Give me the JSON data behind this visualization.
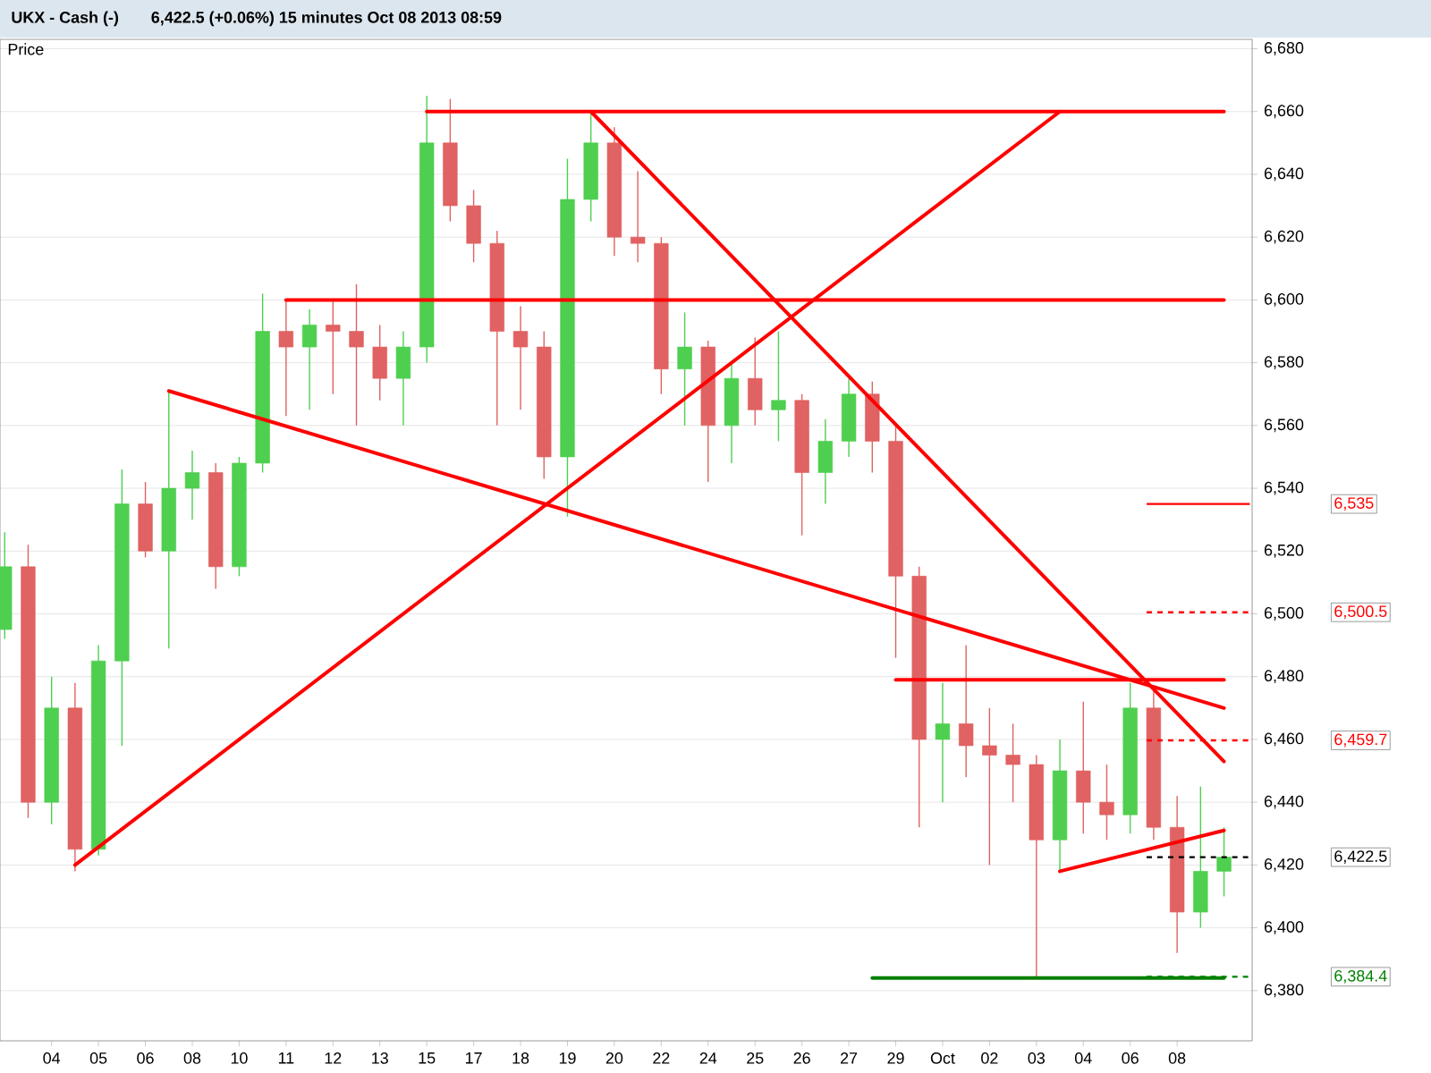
{
  "chart_data": {
    "type": "candlestick",
    "title": "UKX - Cash (-)",
    "subtitle": "6,422.5 (+0.06%)   15 minutes   Oct 08 2013 08:59",
    "ylabel": "Price",
    "categories": [
      null,
      null,
      "04",
      null,
      "05",
      null,
      "06",
      null,
      "08",
      null,
      "10",
      null,
      "11",
      null,
      "12",
      null,
      "13",
      null,
      "15",
      null,
      "17",
      null,
      "18",
      null,
      "19",
      null,
      "20",
      null,
      "22",
      null,
      "24",
      null,
      "25",
      null,
      "26",
      null,
      "27",
      null,
      "29",
      null,
      "Oct",
      null,
      "02",
      null,
      "03",
      null,
      "04",
      null,
      "06",
      null,
      "08",
      null,
      null
    ],
    "ohlc": [
      [
        6495,
        6526,
        6492,
        6515
      ],
      [
        6515,
        6522,
        6435,
        6440
      ],
      [
        6440,
        6480,
        6433,
        6470
      ],
      [
        6470,
        6478,
        6418,
        6425
      ],
      [
        6425,
        6490,
        6423,
        6485
      ],
      [
        6485,
        6546,
        6458,
        6535
      ],
      [
        6535,
        6542,
        6518,
        6520
      ],
      [
        6520,
        6571,
        6489,
        6540
      ],
      [
        6540,
        6552,
        6530,
        6545
      ],
      [
        6545,
        6548,
        6508,
        6515
      ],
      [
        6515,
        6550,
        6512,
        6548
      ],
      [
        6548,
        6602,
        6545,
        6590
      ],
      [
        6590,
        6600,
        6563,
        6585
      ],
      [
        6585,
        6597,
        6565,
        6592
      ],
      [
        6592,
        6600,
        6570,
        6590
      ],
      [
        6590,
        6605,
        6560,
        6585
      ],
      [
        6585,
        6592,
        6568,
        6575
      ],
      [
        6575,
        6590,
        6560,
        6585
      ],
      [
        6585,
        6665,
        6580,
        6650
      ],
      [
        6650,
        6664,
        6625,
        6630
      ],
      [
        6630,
        6635,
        6612,
        6618
      ],
      [
        6618,
        6622,
        6560,
        6590
      ],
      [
        6590,
        6598,
        6565,
        6585
      ],
      [
        6585,
        6590,
        6543,
        6550
      ],
      [
        6550,
        6645,
        6531,
        6632
      ],
      [
        6632,
        6660,
        6625,
        6650
      ],
      [
        6650,
        6655,
        6614,
        6620
      ],
      [
        6620,
        6641,
        6612,
        6618
      ],
      [
        6618,
        6620,
        6570,
        6578
      ],
      [
        6578,
        6596,
        6560,
        6585
      ],
      [
        6585,
        6587,
        6542,
        6560
      ],
      [
        6560,
        6580,
        6548,
        6575
      ],
      [
        6575,
        6588,
        6560,
        6565
      ],
      [
        6565,
        6590,
        6555,
        6568
      ],
      [
        6568,
        6570,
        6525,
        6545
      ],
      [
        6545,
        6562,
        6535,
        6555
      ],
      [
        6555,
        6575,
        6550,
        6570
      ],
      [
        6570,
        6574,
        6545,
        6555
      ],
      [
        6555,
        6560,
        6486,
        6512
      ],
      [
        6512,
        6515,
        6432,
        6460
      ],
      [
        6460,
        6478,
        6440,
        6465
      ],
      [
        6465,
        6490,
        6448,
        6458
      ],
      [
        6458,
        6470,
        6420,
        6455
      ],
      [
        6455,
        6465,
        6440,
        6452
      ],
      [
        6452,
        6455,
        6384,
        6428
      ],
      [
        6428,
        6460,
        6418,
        6450
      ],
      [
        6450,
        6472,
        6430,
        6440
      ],
      [
        6440,
        6452,
        6428,
        6436
      ],
      [
        6436,
        6478,
        6430,
        6470
      ],
      [
        6470,
        6477,
        6428,
        6432
      ],
      [
        6432,
        6442,
        6392,
        6405
      ],
      [
        6405,
        6445,
        6400,
        6418
      ],
      [
        6418,
        6432,
        6410,
        6422.5
      ]
    ],
    "colors": [
      "#4fcf4f",
      "#e06262",
      "#4fcf4f",
      "#e06262",
      "#4fcf4f",
      "#4fcf4f",
      "#e06262",
      "#4fcf4f",
      "#4fcf4f",
      "#e06262",
      "#4fcf4f",
      "#4fcf4f",
      "#e06262",
      "#4fcf4f",
      "#e06262",
      "#e06262",
      "#e06262",
      "#4fcf4f",
      "#4fcf4f",
      "#e06262",
      "#e06262",
      "#e06262",
      "#e06262",
      "#e06262",
      "#4fcf4f",
      "#4fcf4f",
      "#e06262",
      "#e06262",
      "#e06262",
      "#4fcf4f",
      "#e06262",
      "#4fcf4f",
      "#e06262",
      "#4fcf4f",
      "#e06262",
      "#4fcf4f",
      "#4fcf4f",
      "#e06262",
      "#e06262",
      "#e06262",
      "#4fcf4f",
      "#e06262",
      "#e06262",
      "#e06262",
      "#e06262",
      "#4fcf4f",
      "#e06262",
      "#e06262",
      "#4fcf4f",
      "#e06262",
      "#e06262",
      "#4fcf4f",
      "#4fcf4f"
    ],
    "series": [
      {
        "type": "line",
        "color": "#ff0000",
        "values": [
          null,
          null,
          null,
          null,
          null,
          null,
          null,
          null,
          null,
          null,
          null,
          null,
          null,
          null,
          null,
          null,
          null,
          null,
          6660,
          null,
          null,
          null,
          null,
          null,
          null,
          null,
          null,
          null,
          null,
          null,
          null,
          null,
          null,
          null,
          null,
          null,
          null,
          null,
          null,
          null,
          null,
          null,
          null,
          null,
          null,
          null,
          null,
          null,
          null,
          null,
          null,
          null,
          6660
        ]
      },
      {
        "type": "line",
        "color": "#ff0000",
        "values": [
          null,
          null,
          null,
          6420,
          null,
          null,
          null,
          null,
          null,
          null,
          null,
          null,
          null,
          null,
          null,
          null,
          null,
          null,
          null,
          null,
          null,
          null,
          null,
          null,
          null,
          null,
          null,
          null,
          null,
          null,
          null,
          null,
          null,
          null,
          null,
          null,
          null,
          null,
          null,
          null,
          null,
          null,
          null,
          null,
          null,
          6660,
          null,
          null,
          null,
          null,
          null,
          null,
          null
        ]
      },
      {
        "type": "line",
        "color": "#ff0000",
        "values": [
          null,
          null,
          null,
          null,
          null,
          null,
          null,
          null,
          null,
          null,
          null,
          null,
          6600,
          null,
          null,
          null,
          null,
          null,
          null,
          null,
          null,
          null,
          null,
          null,
          null,
          null,
          null,
          null,
          null,
          null,
          null,
          null,
          null,
          null,
          null,
          null,
          null,
          null,
          null,
          null,
          null,
          null,
          null,
          null,
          null,
          null,
          null,
          null,
          null,
          null,
          null,
          null,
          6600
        ]
      },
      {
        "type": "line",
        "color": "#ff0000",
        "values": [
          null,
          null,
          null,
          null,
          null,
          null,
          null,
          6571,
          null,
          null,
          null,
          null,
          null,
          null,
          null,
          null,
          null,
          null,
          null,
          null,
          null,
          null,
          null,
          null,
          null,
          null,
          null,
          null,
          null,
          null,
          null,
          null,
          null,
          null,
          null,
          null,
          null,
          null,
          null,
          null,
          null,
          null,
          null,
          null,
          null,
          null,
          null,
          null,
          null,
          null,
          null,
          null,
          6470
        ]
      },
      {
        "type": "line",
        "color": "#ff0000",
        "values": [
          null,
          null,
          null,
          null,
          null,
          null,
          null,
          null,
          null,
          null,
          null,
          null,
          null,
          null,
          null,
          null,
          null,
          null,
          null,
          null,
          null,
          null,
          null,
          null,
          null,
          6660,
          null,
          null,
          null,
          null,
          null,
          null,
          null,
          null,
          null,
          null,
          null,
          null,
          null,
          null,
          null,
          null,
          null,
          null,
          null,
          null,
          null,
          null,
          null,
          null,
          null,
          null,
          6453
        ]
      },
      {
        "type": "line",
        "color": "#ff0000",
        "values": [
          null,
          null,
          null,
          null,
          null,
          null,
          null,
          null,
          null,
          null,
          null,
          null,
          null,
          null,
          null,
          null,
          null,
          null,
          null,
          null,
          null,
          null,
          null,
          null,
          null,
          null,
          null,
          null,
          null,
          null,
          null,
          null,
          null,
          null,
          null,
          null,
          null,
          null,
          6479,
          null,
          null,
          null,
          null,
          null,
          null,
          null,
          null,
          null,
          null,
          null,
          null,
          null,
          6479
        ]
      },
      {
        "type": "line",
        "color": "#ff0000",
        "values": [
          null,
          null,
          null,
          null,
          null,
          null,
          null,
          null,
          null,
          null,
          null,
          null,
          null,
          null,
          null,
          null,
          null,
          null,
          null,
          null,
          null,
          null,
          null,
          null,
          null,
          null,
          null,
          null,
          null,
          null,
          null,
          null,
          null,
          null,
          null,
          null,
          null,
          null,
          null,
          null,
          null,
          null,
          null,
          null,
          null,
          6418,
          null,
          null,
          null,
          null,
          null,
          null,
          6431
        ]
      },
      {
        "type": "line",
        "color": "#008000",
        "values": [
          null,
          null,
          null,
          null,
          null,
          null,
          null,
          null,
          null,
          null,
          null,
          null,
          null,
          null,
          null,
          null,
          null,
          null,
          null,
          null,
          null,
          null,
          null,
          null,
          null,
          null,
          null,
          null,
          null,
          null,
          null,
          null,
          null,
          null,
          null,
          null,
          null,
          6384,
          null,
          null,
          null,
          null,
          null,
          null,
          null,
          null,
          null,
          null,
          null,
          null,
          null,
          null,
          6384
        ]
      }
    ],
    "ref_lines": [
      {
        "axis": "y",
        "value": 6535,
        "label": "6,535",
        "color": "#ff0000",
        "line_style": "solid"
      },
      {
        "axis": "y",
        "value": 6500.5,
        "label": "6,500.5",
        "color": "#ff0000",
        "line_style": "dashed"
      },
      {
        "axis": "y",
        "value": 6459.7,
        "label": "6,459.7",
        "color": "#ff0000",
        "line_style": "dashed"
      },
      {
        "axis": "y",
        "value": 6422.5,
        "label": "6,422.5",
        "color": "#000000",
        "line_style": "dashed"
      },
      {
        "axis": "y",
        "value": 6384.4,
        "label": "6,384.4",
        "color": "#008000",
        "line_style": "dashed"
      }
    ],
    "ylim": [
      6364,
      6683
    ],
    "yticks": [
      {
        "value": 6380,
        "label": "6,380"
      },
      {
        "value": 6400,
        "label": "6,400"
      },
      {
        "value": 6420,
        "label": "6,420"
      },
      {
        "value": 6440,
        "label": "6,440"
      },
      {
        "value": 6460,
        "label": "6,460"
      },
      {
        "value": 6480,
        "label": "6,480"
      },
      {
        "value": 6500,
        "label": "6,500"
      },
      {
        "value": 6520,
        "label": "6,520"
      },
      {
        "value": 6540,
        "label": "6,540"
      },
      {
        "value": 6560,
        "label": "6,560"
      },
      {
        "value": 6580,
        "label": "6,580"
      },
      {
        "value": 6600,
        "label": "6,600"
      },
      {
        "value": 6620,
        "label": "6,620"
      },
      {
        "value": 6640,
        "label": "6,640"
      },
      {
        "value": 6660,
        "label": "6,660"
      },
      {
        "value": 6680,
        "label": "6,680"
      }
    ],
    "grid": "y"
  }
}
